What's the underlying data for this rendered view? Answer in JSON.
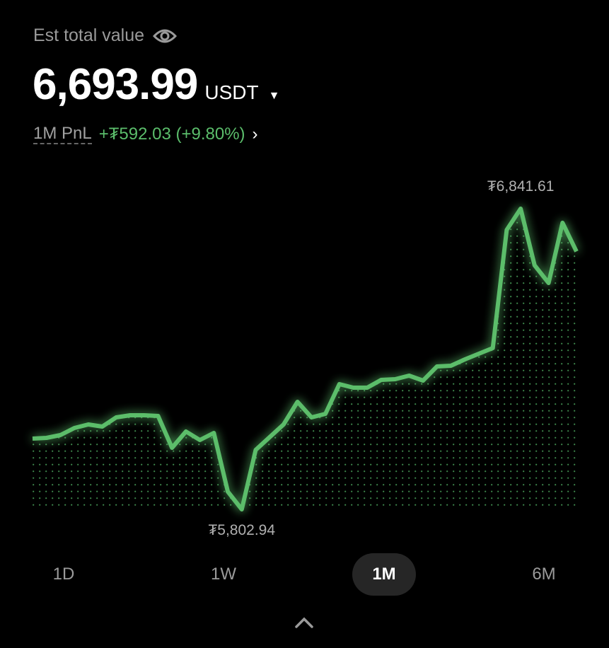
{
  "header": {
    "label": "Est total value",
    "eye_icon": "eye-icon",
    "total_value": "6,693.99",
    "currency": "USDT",
    "pnl_label": "1M PnL",
    "pnl_value": "+₮592.03 (+9.80%)"
  },
  "colors": {
    "accent_green": "#5bbd6b",
    "background": "#000000"
  },
  "tabs": [
    {
      "label": "1D",
      "selected": false
    },
    {
      "label": "1W",
      "selected": false
    },
    {
      "label": "1M",
      "selected": true
    },
    {
      "label": "6M",
      "selected": false
    }
  ],
  "chart_data": {
    "type": "area",
    "max_label": "₮6,841.61",
    "min_label": "₮5,802.94",
    "ylim": [
      5802.94,
      6841.61
    ],
    "grid": false,
    "values": [
      6047.3,
      6049.8,
      6059.5,
      6084.0,
      6096.2,
      6088.9,
      6120.6,
      6128.0,
      6128.0,
      6125.6,
      6015.6,
      6071.8,
      6042.4,
      6066.9,
      5864.0,
      5802.94,
      6008.2,
      6052.2,
      6096.2,
      6174.4,
      6120.6,
      6132.9,
      6235.5,
      6223.3,
      6223.3,
      6250.2,
      6252.6,
      6264.8,
      6247.7,
      6296.6,
      6299.1,
      6321.0,
      6340.6,
      6360.1,
      6768.3,
      6841.61,
      6646.1,
      6585.0,
      6792.9,
      6693.99
    ]
  }
}
